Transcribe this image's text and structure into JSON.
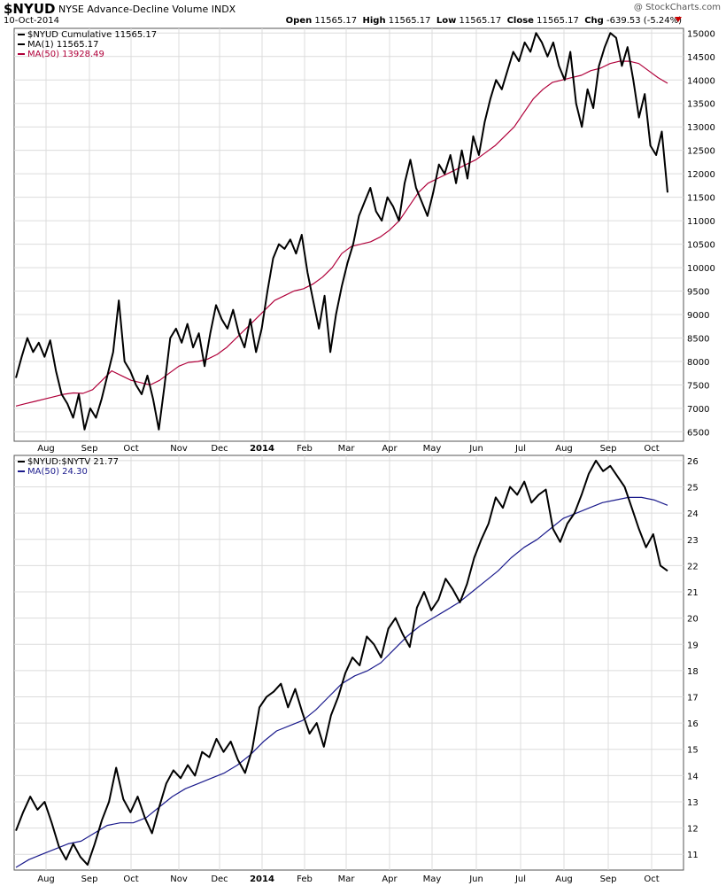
{
  "header": {
    "symbol": "$NYUD",
    "name": "NYSE Advance-Decline Volume INDX",
    "date": "10-Oct-2014",
    "watermark": "@ StockCharts.com",
    "open_label": "Open",
    "open": "11565.17",
    "high_label": "High",
    "high": "11565.17",
    "low_label": "Low",
    "low": "11565.17",
    "close_label": "Close",
    "close": "11565.17",
    "chg_label": "Chg",
    "chg": "-639.53 (-5.24%)",
    "down_color": "#cc0000"
  },
  "chart_data": [
    {
      "type": "line",
      "legend": [
        {
          "text": "$NYUD Cumulative 11565.17",
          "color": "#000000"
        },
        {
          "text": "MA(1) 11565.17",
          "color": "#000000"
        },
        {
          "text": "MA(50) 13928.49",
          "color": "#b0003a"
        }
      ],
      "x_labels": [
        "Aug",
        "Sep",
        "Oct",
        "Nov",
        "Dec",
        "2014",
        "Feb",
        "Mar",
        "Apr",
        "May",
        "Jun",
        "Jul",
        "Aug",
        "Sep",
        "Oct"
      ],
      "y_ticks": [
        6500,
        7000,
        7500,
        8000,
        8500,
        9000,
        9500,
        10000,
        10500,
        11000,
        11500,
        12000,
        12500,
        13000,
        13500,
        14000,
        14500,
        15000
      ],
      "ylim": [
        6300,
        15100
      ],
      "grid": true,
      "series": [
        {
          "name": "$NYUD Cumulative",
          "color": "#000000",
          "values": [
            7650,
            8100,
            8500,
            8200,
            8400,
            8100,
            8450,
            7800,
            7300,
            7100,
            6800,
            7300,
            6550,
            7000,
            6800,
            7200,
            7700,
            8200,
            9300,
            8000,
            7800,
            7500,
            7300,
            7700,
            7200,
            6550,
            7500,
            8500,
            8700,
            8400,
            8800,
            8300,
            8600,
            7900,
            8600,
            9200,
            8900,
            8700,
            9100,
            8600,
            8300,
            8900,
            8200,
            8700,
            9500,
            10200,
            10500,
            10400,
            10600,
            10300,
            10700,
            9900,
            9300,
            8700,
            9400,
            8200,
            9000,
            9600,
            10100,
            10500,
            11100,
            11400,
            11700,
            11200,
            11000,
            11500,
            11300,
            11000,
            11800,
            12300,
            11700,
            11400,
            11100,
            11600,
            12200,
            12000,
            12400,
            11800,
            12500,
            11900,
            12800,
            12400,
            13100,
            13600,
            14000,
            13800,
            14200,
            14600,
            14400,
            14800,
            14600,
            15000,
            14800,
            14500,
            14800,
            14300,
            14000,
            14600,
            13500,
            13000,
            13800,
            13400,
            14300,
            14700,
            15000,
            14900,
            14300,
            14700,
            14000,
            13200,
            13700,
            12600,
            12400,
            12900,
            11600
          ]
        },
        {
          "name": "MA(50)",
          "color": "#b0003a",
          "values": [
            7050,
            7100,
            7150,
            7200,
            7250,
            7300,
            7330,
            7320,
            7400,
            7600,
            7800,
            7700,
            7600,
            7550,
            7500,
            7600,
            7750,
            7900,
            7980,
            8000,
            8050,
            8150,
            8300,
            8500,
            8700,
            8900,
            9100,
            9300,
            9400,
            9500,
            9550,
            9650,
            9800,
            10000,
            10300,
            10450,
            10500,
            10550,
            10650,
            10800,
            11000,
            11300,
            11600,
            11800,
            11900,
            12000,
            12100,
            12200,
            12300,
            12450,
            12600,
            12800,
            13000,
            13300,
            13600,
            13800,
            13950,
            14000,
            14050,
            14100,
            14200,
            14250,
            14350,
            14400,
            14400,
            14350,
            14200,
            14050,
            13930
          ]
        }
      ]
    },
    {
      "type": "line",
      "legend": [
        {
          "text": "$NYUD:$NYTV 21.77",
          "color": "#000000"
        },
        {
          "text": "MA(50) 24.30",
          "color": "#1a1a8c"
        }
      ],
      "x_labels": [
        "Aug",
        "Sep",
        "Oct",
        "Nov",
        "Dec",
        "2014",
        "Feb",
        "Mar",
        "Apr",
        "May",
        "Jun",
        "Jul",
        "Aug",
        "Sep",
        "Oct"
      ],
      "y_ticks": [
        11,
        12,
        13,
        14,
        15,
        16,
        17,
        18,
        19,
        20,
        21,
        22,
        23,
        24,
        25,
        26
      ],
      "ylim": [
        10.4,
        26.2
      ],
      "grid": true,
      "series": [
        {
          "name": "$NYUD:$NYTV",
          "color": "#000000",
          "values": [
            11.9,
            12.6,
            13.2,
            12.7,
            13.0,
            12.2,
            11.3,
            10.8,
            11.4,
            10.9,
            10.6,
            11.4,
            12.3,
            13.0,
            14.3,
            13.1,
            12.6,
            13.2,
            12.4,
            11.8,
            12.8,
            13.7,
            14.2,
            13.9,
            14.4,
            14.0,
            14.9,
            14.7,
            15.4,
            14.9,
            15.3,
            14.6,
            14.1,
            15.0,
            16.6,
            17.0,
            17.2,
            17.5,
            16.6,
            17.3,
            16.4,
            15.6,
            16.0,
            15.1,
            16.3,
            17.0,
            17.9,
            18.5,
            18.2,
            19.3,
            19.0,
            18.5,
            19.6,
            20.0,
            19.4,
            18.9,
            20.4,
            21.0,
            20.3,
            20.7,
            21.5,
            21.1,
            20.6,
            21.3,
            22.3,
            23.0,
            23.6,
            24.6,
            24.2,
            25.0,
            24.7,
            25.2,
            24.4,
            24.7,
            24.9,
            23.4,
            22.9,
            23.6,
            24.0,
            24.7,
            25.5,
            26.0,
            25.6,
            25.8,
            25.4,
            25.0,
            24.2,
            23.4,
            22.7,
            23.2,
            22.0,
            21.8
          ]
        },
        {
          "name": "MA(50)",
          "color": "#1a1a8c",
          "values": [
            10.5,
            10.8,
            11.0,
            11.2,
            11.4,
            11.5,
            11.8,
            12.1,
            12.2,
            12.2,
            12.4,
            12.8,
            13.2,
            13.5,
            13.7,
            13.9,
            14.1,
            14.4,
            14.8,
            15.3,
            15.7,
            15.9,
            16.1,
            16.5,
            17.0,
            17.5,
            17.8,
            18.0,
            18.3,
            18.8,
            19.3,
            19.7,
            20.0,
            20.3,
            20.6,
            21.0,
            21.4,
            21.8,
            22.3,
            22.7,
            23.0,
            23.4,
            23.8,
            24.0,
            24.2,
            24.4,
            24.5,
            24.6,
            24.6,
            24.5,
            24.3
          ]
        }
      ]
    }
  ]
}
